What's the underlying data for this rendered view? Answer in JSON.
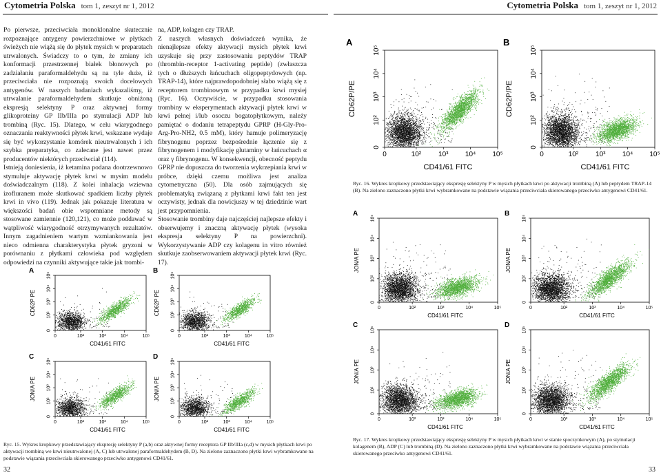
{
  "header": {
    "left_brand": "Cytometria Polska",
    "left_issue": "tom 1, zeszyt nr 1, 2012",
    "right_brand": "Cytometria Polska",
    "right_issue": "tom 1, zeszyt nr 1, 2012"
  },
  "page_left": {
    "number": "32",
    "column1": [
      "Po pierwsze, przeciwciała monoklonalne skutecznie rozpoznające antygeny powierzchniowe w płytkach świeżych nie wiążą się do płytek mysich w preparatach utrwalonych. Świadczy to o tym, że zmiany ich konformacji przestrzennej białek błonowych po zadziałaniu paraformaldehydu są na tyle duże, iż przeciwciała nie rozpoznają swoich docelowych antygenów. W naszych badaniach wykazaliśmy, iż utrwalanie paraformaldehydem skutkuje obniżoną ekspresją selektyny P oraz aktywnej formy glikoproteiny GP IIb/IIIa po stymulacji ADP lub trombiną (Ryc. 15). Dlatego, w celu wiarygodnego oznaczania reaktywności płytek krwi, wskazane wydaje się być wykorzystanie komórek nieutrwalonych i ich szybka preparatyka, co zalecane jest nawet przez producentów niektórych przeciwciał (114).",
      "Istnieją doniesienia, iż ketamina podana dootrzewnowo stymuluje aktywację płytek krwi w mysim modelu doświadczalnym (118). Z kolei inhalacja wziewna izofluranem może skutkować spadkiem liczby płytek krwi in vivo (119). Jednak jak pokazuje literatura w większości badań obie wspomniane metody są stosowane zamiennie (120,121), co może poddawać w wątpliwość wiarygodność otrzymywanych rezultatów. Innym zagadnieniem wartym wzmiankowania jest nieco odmienna charakterystyka płytek gryzoni w porównaniu z płytkami człowieka pod względem odpowiedzi na czynniki aktywujące takie jak trombi-"
    ],
    "column2": [
      "na, ADP, kolagen czy TRAP.",
      "Z naszych własnych doświadczeń wynika, że nienajlepsze efekty aktywacji mysich płytek krwi uzyskuje się przy zastosowaniu peptydów TRAP (thrombin-receptor 1-activating peptide) (zwłaszcza tych o dłuższych łańcuchach oligopeptydowych (np. TRAP-14), które najprawdopodobniej słabo wiążą się z receptorem trombinowym w przypadku krwi mysiej (Ryc. 16). Oczywiście, w przypadku stosowania trombiny w eksperymentach aktywacji płytek krwi w krwi pełnej i/lub osoczu bogatopłytkowym, należy pamiętać o dodaniu tetrapeptydu GPRP (H-Gly-Pro-Arg-Pro-NH2, 0.5 mM), który hamuje polimeryzację fibrynogenu poprzez bezpośrednie łączenie się z fibrynogenem i modyfikację glutaminy w łańcuchach α oraz γ fibrynogenu. W konsekwencji, obecność peptydu GPRP nie dopuszcza do tworzenia wykrzepiania krwi w próbce, dzięki czemu możliwa jest analiza cytometryczna (50). Dla osób zajmujących się problematyką związaną z płytkami krwi fakt ten jest oczywisty, jednak dla nowicjuszy w tej dziedzinie wart jest przypomnienia.",
      "Stosowanie trombiny daje najczęściej najlepsze efekty i obserwujemy i znaczną aktywację płytek (wysoka ekspresja selektyny P na powierzchni). Wykorzystywanie ADP czy kolagenu in vitro również skutkuje zaobserwowaniem aktywacji płytek krwi (Ryc. 17)."
    ],
    "fig15_caption": "Ryc. 15. Wykres kropkowy przedstawiający ekspresję selektyny P (a,b) oraz aktywnej formy receptora GP IIb/IIIa (c,d) w mysich płytkach krwi po aktywacji trombiną we krwi nieutrwalonej (A, C) lub utrwalonej paraformaldehydem (B, D). Na zielono zaznaczono płytki krwi wybramkowane na podstawie wiązania przeciwciała skierowanego przeciwko antygenowi CD41/61."
  },
  "page_right": {
    "number": "33",
    "fig16_caption": "Ryc. 16. Wykres kropkowy przedstawiający ekspresję selektyny P w mysich płytkach krwi po aktywacji trombiną (A) lub peptydem TRAP-14 (B). Na zielono zaznaczono płytki krwi wybramkowane na podstawie wiązania przeciwciała skierowanego przeciwko antygenowi CD41/61.",
    "fig17_caption": "Ryc. 17. Wykres kropkowy przedstawiający ekspresję selektyny P w mysich płytkach krwi w stanie spoczynkowym (A), po stymulacji kolagenem (B), ADP (C) lub trombiną (D). Na zielono zaznaczono płytki krwi wybramkowane na podstawie wiązania przeciwciała skierowanego przeciwko antygenowi CD41/61."
  },
  "plots": {
    "x_label": "CD41/61 FITC",
    "y_label_cd62p": "CD62P PE",
    "y_label_cd62p_slash": "CD62P/PE",
    "y_label_jon": "JON/A PE",
    "ticks": [
      "0",
      "10",
      "10",
      "10",
      "10"
    ],
    "tick_exp": [
      "",
      "2",
      "3",
      "4",
      "5"
    ],
    "x_ticks_a": [
      "0",
      "10²",
      "10³",
      "10⁴",
      "10⁵"
    ],
    "x_tick_first_merged": "010²",
    "colors": {
      "black": "#111111",
      "green": "#4fae3b"
    }
  },
  "figures": {
    "fig15": {
      "panels": [
        {
          "letter": "A",
          "ylabel": "CD62P PE",
          "green_shape": "high"
        },
        {
          "letter": "B",
          "ylabel": "CD62P PE",
          "green_shape": "high"
        },
        {
          "letter": "C",
          "ylabel": "JON/A PE",
          "green_shape": "high"
        },
        {
          "letter": "D",
          "ylabel": "JON/A PE",
          "green_shape": "mid"
        }
      ]
    },
    "fig16": {
      "panels": [
        {
          "letter": "A",
          "ylabel": "CD62P/PE",
          "green_shape": "high"
        },
        {
          "letter": "B",
          "ylabel": "CD62P/PE",
          "green_shape": "low"
        }
      ]
    },
    "fig17": {
      "panels": [
        {
          "letter": "A",
          "ylabel": "JON/A PE",
          "green_shape": "low"
        },
        {
          "letter": "B",
          "ylabel": "JON/A PE",
          "green_shape": "mid"
        },
        {
          "letter": "C",
          "ylabel": "JON/A PE",
          "green_shape": "low"
        },
        {
          "letter": "D",
          "ylabel": "JON/A PE",
          "green_shape": "high"
        }
      ]
    }
  }
}
